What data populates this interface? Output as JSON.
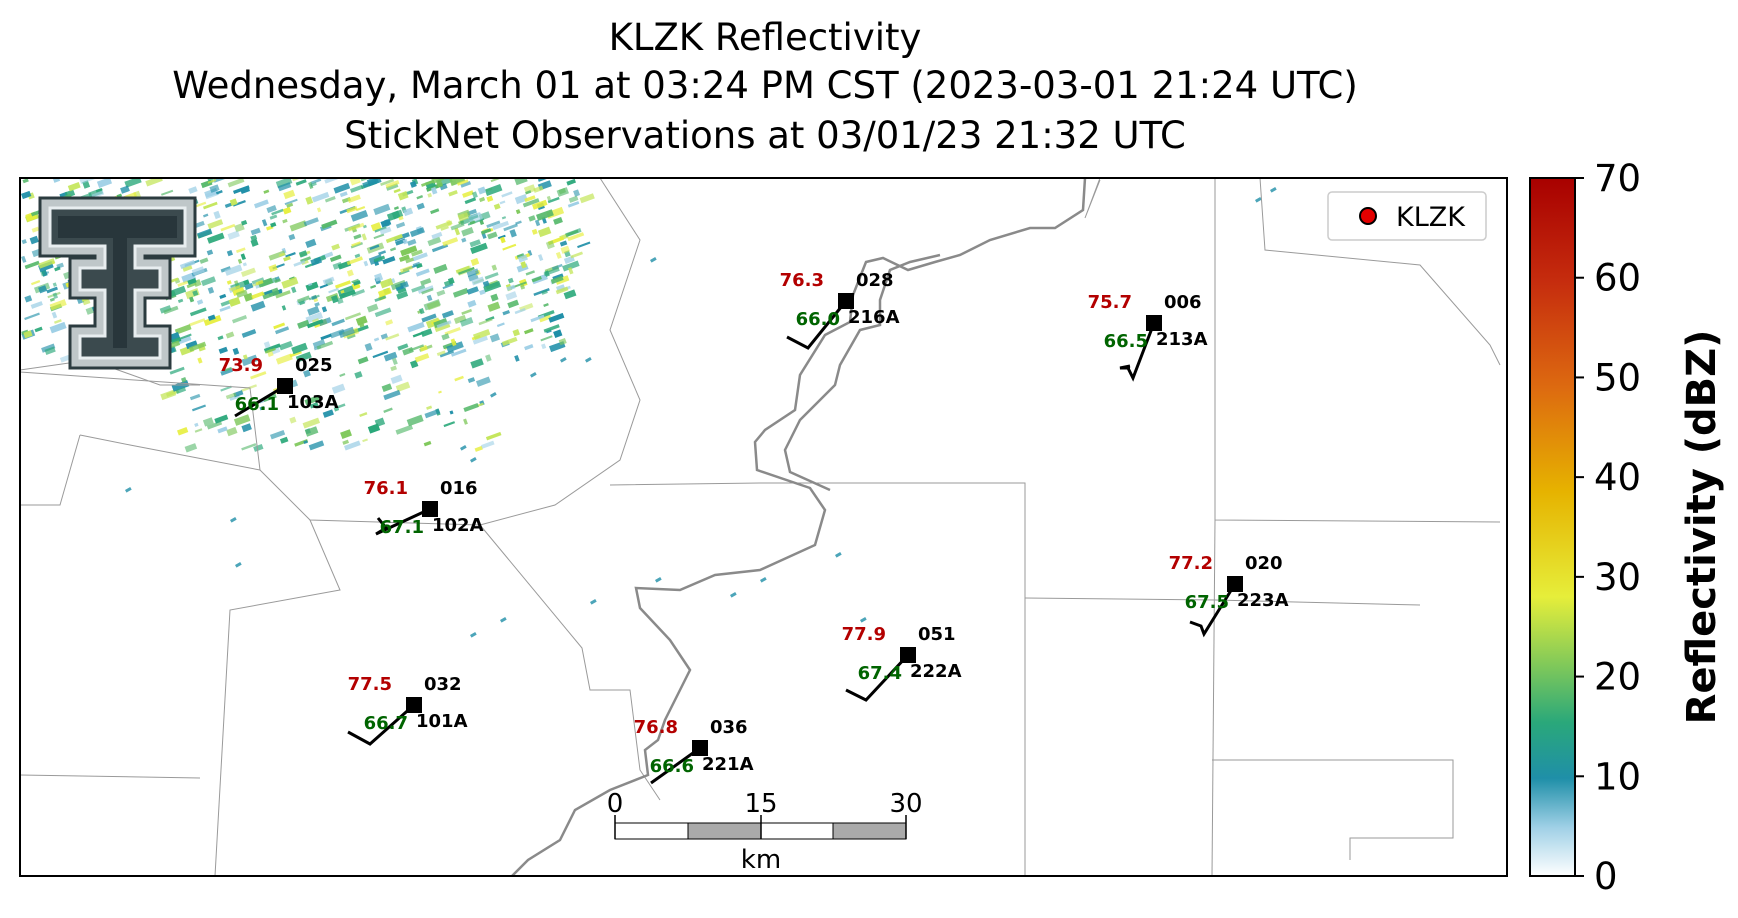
{
  "title": {
    "line1": "KLZK Reflectivity",
    "line2": "Wednesday, March 01 at 03:24 PM CST (2023-03-01 21:24 UTC)",
    "line3": "StickNet Observations at 03/01/23 21:32 UTC"
  },
  "legend": {
    "label": "KLZK",
    "marker_color": "#e30000"
  },
  "colorbar": {
    "label": "Reflectivity (dBZ)",
    "ticks": [
      "70",
      "60",
      "50",
      "40",
      "30",
      "20",
      "10",
      "0"
    ],
    "range": [
      0,
      70
    ]
  },
  "scalebar": {
    "ticks": [
      "0",
      "15",
      "30"
    ],
    "unit": "km"
  },
  "stations": [
    {
      "id": "025",
      "probe": "103A",
      "temp": "73.9",
      "dew": "66.1"
    },
    {
      "id": "028",
      "probe": "216A",
      "temp": "76.3",
      "dew": "66.0"
    },
    {
      "id": "006",
      "probe": "213A",
      "temp": "75.7",
      "dew": "66.5"
    },
    {
      "id": "016",
      "probe": "102A",
      "temp": "76.1",
      "dew": "67.1"
    },
    {
      "id": "020",
      "probe": "223A",
      "temp": "77.2",
      "dew": "67.5"
    },
    {
      "id": "051",
      "probe": "222A",
      "temp": "77.9",
      "dew": "67.4"
    },
    {
      "id": "032",
      "probe": "101A",
      "temp": "77.5",
      "dew": "66.7"
    },
    {
      "id": "036",
      "probe": "221A",
      "temp": "76.8",
      "dew": "66.6"
    }
  ],
  "colors": {
    "temp": "#b30000",
    "dew": "#006400",
    "river": "#888888",
    "county": "#9a9a9a"
  }
}
